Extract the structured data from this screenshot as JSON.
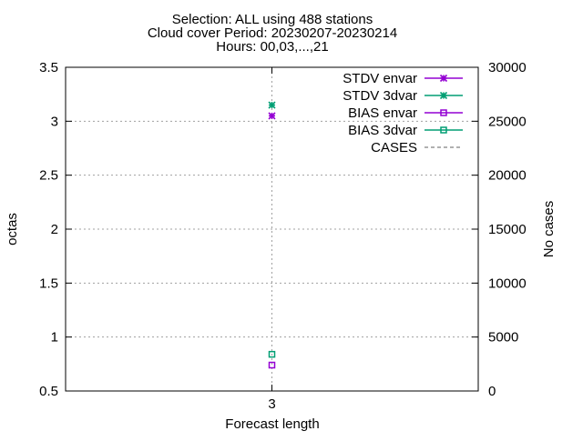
{
  "chart_data": {
    "type": "scatter",
    "title_lines": [
      "Selection: ALL using   488 stations",
      "Cloud cover   Period: 20230207-20230214",
      "Hours: 00,03,...,21"
    ],
    "xlabel": "Forecast length",
    "ylabel_left": "octas",
    "ylabel_right": "No cases",
    "x_categories": [
      "3"
    ],
    "ylim_left": [
      0.5,
      3.5
    ],
    "yticks_left": [
      "0.5",
      "1",
      "1.5",
      "2",
      "2.5",
      "3",
      "3.5"
    ],
    "ylim_right": [
      0,
      30000
    ],
    "yticks_right": [
      "0",
      "5000",
      "10000",
      "15000",
      "20000",
      "25000",
      "30000"
    ],
    "grid": true,
    "legend_position": "top-right",
    "series": [
      {
        "name": "STDV envar",
        "marker": "star",
        "color": "#9400d3",
        "values": [
          3.05
        ]
      },
      {
        "name": "STDV 3dvar",
        "marker": "star",
        "color": "#009e73",
        "values": [
          3.15
        ]
      },
      {
        "name": "BIAS envar",
        "marker": "square",
        "color": "#9400d3",
        "values": [
          0.74
        ]
      },
      {
        "name": "BIAS 3dvar",
        "marker": "square",
        "color": "#009e73",
        "values": [
          0.84
        ]
      },
      {
        "name": "CASES",
        "marker": "none",
        "line": "dashed",
        "color": "#808080",
        "axis": "right",
        "values": []
      }
    ]
  }
}
